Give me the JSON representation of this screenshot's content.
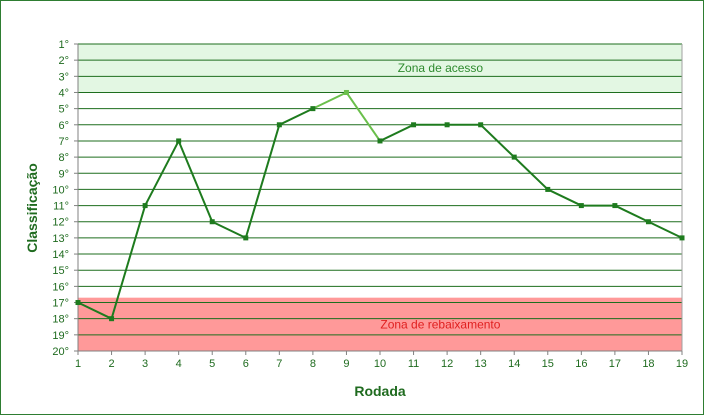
{
  "chart_data": {
    "type": "line",
    "xlabel": "Rodada",
    "ylabel": "Classificação",
    "x": [
      1,
      2,
      3,
      4,
      5,
      6,
      7,
      8,
      9,
      10,
      11,
      12,
      13,
      14,
      15,
      16,
      17,
      18,
      19
    ],
    "series": [
      {
        "values": [
          17,
          18,
          11,
          7,
          12,
          13,
          6,
          5,
          4,
          7,
          6,
          6,
          6,
          8,
          10,
          11,
          11,
          12,
          13
        ]
      }
    ],
    "y_ticks": [
      "1°",
      "2°",
      "3°",
      "4°",
      "5°",
      "6°",
      "7°",
      "8°",
      "9°",
      "10°",
      "11°",
      "12°",
      "13°",
      "14°",
      "15°",
      "16°",
      "17°",
      "18°",
      "19°",
      "20°"
    ],
    "x_ticks": [
      "1",
      "2",
      "3",
      "4",
      "5",
      "6",
      "7",
      "8",
      "9",
      "10",
      "11",
      "12",
      "13",
      "14",
      "15",
      "16",
      "17",
      "18",
      "19"
    ],
    "ylim": [
      1,
      20
    ],
    "y_inverted": true,
    "xlim": [
      1,
      19
    ],
    "grid": "horizontal",
    "zones": [
      {
        "label": "Zona de acesso",
        "from": 1,
        "to": 4,
        "color": "#e3f7e3",
        "label_color": "#2e8b2e"
      },
      {
        "label": "Zona de rebaixamento",
        "from": 16.7,
        "to": 20,
        "color": "#ff9999",
        "label_color": "#e02020"
      }
    ],
    "line_color": "#1e7b1e",
    "highlight_color": "#6abf4b"
  }
}
